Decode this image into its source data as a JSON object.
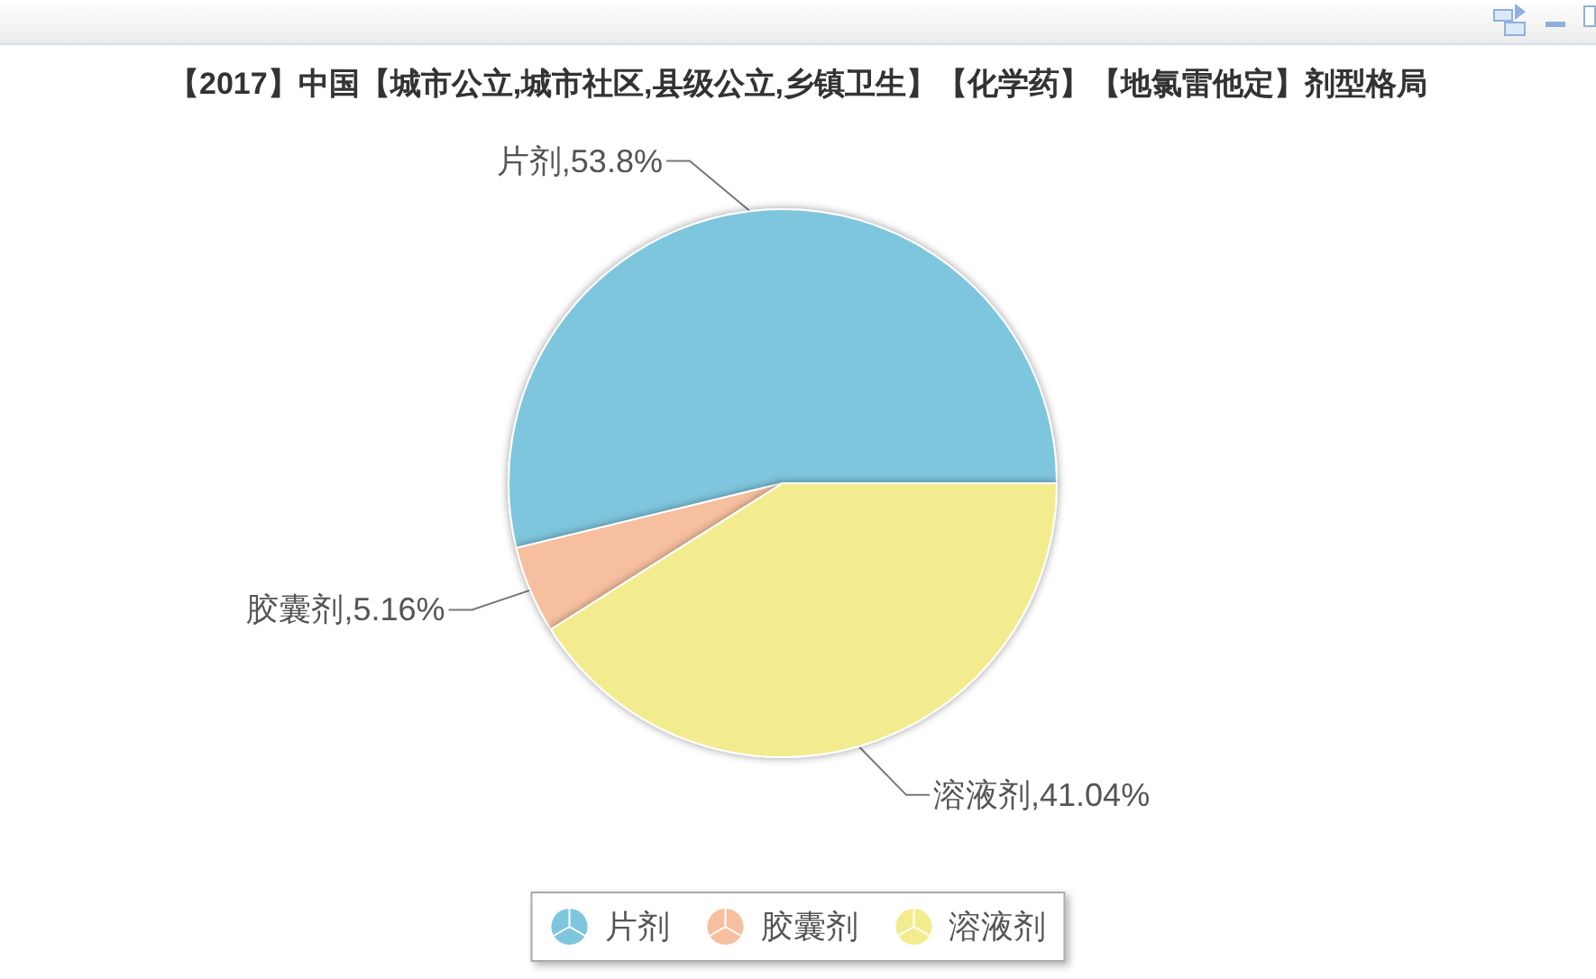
{
  "chart_data": {
    "type": "pie",
    "title": "【2017】中国【城市公立,城市社区,县级公立,乡镇卫生】【化学药】【地氯雷他定】剂型格局",
    "categories": [
      "片剂",
      "胶囊剂",
      "溶液剂"
    ],
    "values": [
      53.8,
      5.16,
      41.04
    ],
    "colors": [
      "#7ec6dd",
      "#f6bf9f",
      "#f2ec8f"
    ],
    "value_labels": [
      "片剂,53.8%",
      "胶囊剂,5.16%",
      "溶液剂,41.04%"
    ],
    "legend": "bottom"
  }
}
